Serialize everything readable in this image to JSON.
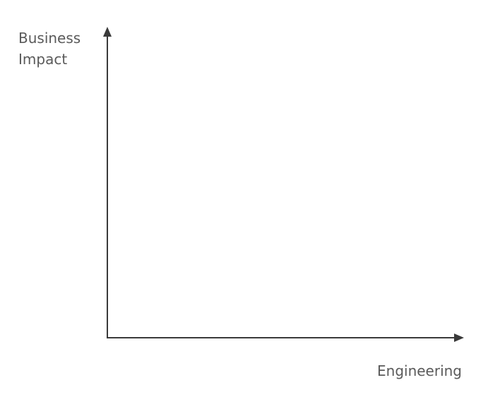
{
  "axes": {
    "y_label": [
      "Business",
      "Impact"
    ],
    "x_label": "Engineering"
  }
}
